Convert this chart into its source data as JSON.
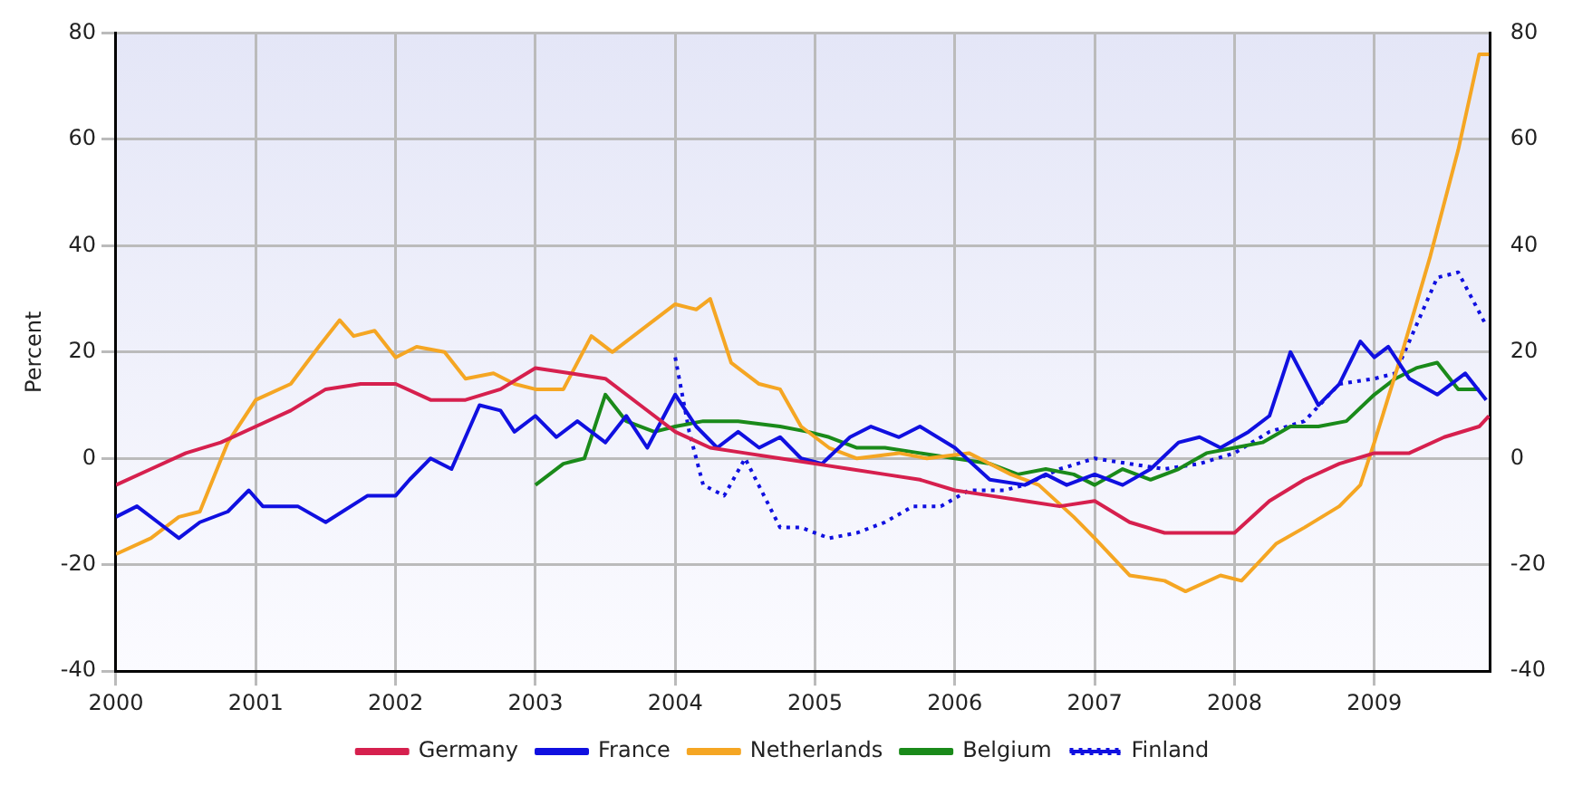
{
  "chart_data": {
    "type": "line",
    "ylabel": "Percent",
    "xlim": [
      2000,
      2009.83
    ],
    "xticks": [
      2000,
      2001,
      2002,
      2003,
      2004,
      2005,
      2006,
      2007,
      2008,
      2009
    ],
    "ylim": [
      -40,
      80
    ],
    "yticks": [
      -40,
      -20,
      0,
      20,
      40,
      60,
      80
    ],
    "y2lim": [
      -40,
      80
    ],
    "y2ticks": [
      -40,
      -20,
      0,
      20,
      40,
      60,
      80
    ],
    "grid": true,
    "legend": "bottom",
    "marker": "none",
    "series": [
      {
        "name": "Germany",
        "color": "#d6204e",
        "x": [
          2000,
          2000.25,
          2000.5,
          2000.75,
          2001,
          2001.25,
          2001.5,
          2001.75,
          2002,
          2002.25,
          2002.5,
          2002.75,
          2003,
          2003.25,
          2003.5,
          2003.75,
          2004,
          2004.25,
          2004.5,
          2004.75,
          2005,
          2005.25,
          2005.5,
          2005.75,
          2006,
          2006.25,
          2006.5,
          2006.75,
          2007,
          2007.25,
          2007.5,
          2007.75,
          2008,
          2008.25,
          2008.5,
          2008.75,
          2009,
          2009.25,
          2009.5,
          2009.75,
          2009.82
        ],
        "values": [
          -5,
          -2,
          1,
          3,
          6,
          9,
          13,
          14,
          14,
          11,
          11,
          13,
          17,
          16,
          15,
          10,
          5,
          2,
          1,
          0,
          -1,
          -2,
          -3,
          -4,
          -6,
          -7,
          -8,
          -9,
          -8,
          -12,
          -14,
          -14,
          -14,
          -8,
          -4,
          -1,
          1,
          1,
          4,
          6,
          8
        ]
      },
      {
        "name": "France",
        "color": "#1010e0",
        "x": [
          2000,
          2000.15,
          2000.3,
          2000.45,
          2000.6,
          2000.8,
          2000.95,
          2001.05,
          2001.3,
          2001.5,
          2001.8,
          2002,
          2002.1,
          2002.25,
          2002.4,
          2002.5,
          2002.6,
          2002.75,
          2002.85,
          2003,
          2003.15,
          2003.3,
          2003.5,
          2003.65,
          2003.8,
          2004,
          2004.15,
          2004.3,
          2004.45,
          2004.6,
          2004.75,
          2004.9,
          2005.05,
          2005.25,
          2005.4,
          2005.6,
          2005.75,
          2006,
          2006.25,
          2006.5,
          2006.65,
          2006.8,
          2007,
          2007.2,
          2007.4,
          2007.6,
          2007.75,
          2007.9,
          2008.1,
          2008.25,
          2008.4,
          2008.5,
          2008.6,
          2008.75,
          2008.9,
          2009,
          2009.1,
          2009.25,
          2009.45,
          2009.65,
          2009.8
        ],
        "values": [
          -11,
          -9,
          -12,
          -15,
          -12,
          -10,
          -6,
          -9,
          -9,
          -12,
          -7,
          -7,
          -4,
          0,
          -2,
          4,
          10,
          9,
          5,
          8,
          4,
          7,
          3,
          8,
          2,
          12,
          6,
          2,
          5,
          2,
          4,
          0,
          -1,
          4,
          6,
          4,
          6,
          2,
          -4,
          -5,
          -3,
          -5,
          -3,
          -5,
          -2,
          3,
          4,
          2,
          5,
          8,
          20,
          15,
          10,
          14,
          22,
          19,
          21,
          15,
          12,
          16,
          11
        ]
      },
      {
        "name": "Netherlands",
        "color": "#f5a623",
        "x": [
          2000,
          2000.25,
          2000.45,
          2000.6,
          2000.8,
          2001,
          2001.25,
          2001.45,
          2001.6,
          2001.7,
          2001.85,
          2002,
          2002.15,
          2002.35,
          2002.5,
          2002.7,
          2002.85,
          2003,
          2003.2,
          2003.4,
          2003.55,
          2003.8,
          2004,
          2004.15,
          2004.25,
          2004.4,
          2004.6,
          2004.75,
          2004.9,
          2005.1,
          2005.3,
          2005.6,
          2005.8,
          2006.1,
          2006.4,
          2006.6,
          2006.85,
          2007,
          2007.25,
          2007.5,
          2007.65,
          2007.9,
          2008.05,
          2008.3,
          2008.5,
          2008.75,
          2008.9,
          2009,
          2009.2,
          2009.4,
          2009.6,
          2009.75,
          2009.82
        ],
        "values": [
          -18,
          -15,
          -11,
          -10,
          3,
          11,
          14,
          21,
          26,
          23,
          24,
          19,
          21,
          20,
          15,
          16,
          14,
          13,
          13,
          23,
          20,
          25,
          29,
          28,
          30,
          18,
          14,
          13,
          6,
          2,
          0,
          1,
          0,
          1,
          -3,
          -5,
          -11,
          -15,
          -22,
          -23,
          -25,
          -22,
          -23,
          -16,
          -13,
          -9,
          -5,
          3,
          20,
          38,
          58,
          76,
          76
        ]
      },
      {
        "name": "Belgium",
        "color": "#1a8a1a",
        "x": [
          2003,
          2003.1,
          2003.2,
          2003.35,
          2003.5,
          2003.65,
          2003.85,
          2004,
          2004.2,
          2004.45,
          2004.75,
          2004.95,
          2005.1,
          2005.3,
          2005.5,
          2005.75,
          2006,
          2006.25,
          2006.45,
          2006.65,
          2006.85,
          2007,
          2007.2,
          2007.4,
          2007.6,
          2007.8,
          2008,
          2008.2,
          2008.4,
          2008.6,
          2008.8,
          2009,
          2009.15,
          2009.3,
          2009.45,
          2009.6,
          2009.75
        ],
        "values": [
          -5,
          -3,
          -1,
          0,
          12,
          7,
          5,
          6,
          7,
          7,
          6,
          5,
          4,
          2,
          2,
          1,
          0,
          -1,
          -3,
          -2,
          -3,
          -5,
          -2,
          -4,
          -2,
          1,
          2,
          3,
          6,
          6,
          7,
          12,
          15,
          17,
          18,
          13,
          13
        ]
      },
      {
        "name": "Finland",
        "color": "#1010e0",
        "line_style": "dotted",
        "x": [
          2004,
          2004.1,
          2004.2,
          2004.35,
          2004.5,
          2004.75,
          2004.9,
          2005.1,
          2005.3,
          2005.5,
          2005.7,
          2005.9,
          2006.1,
          2006.35,
          2006.5,
          2006.75,
          2007,
          2007.25,
          2007.5,
          2007.75,
          2008,
          2008.25,
          2008.5,
          2008.75,
          2009,
          2009.15,
          2009.3,
          2009.45,
          2009.6,
          2009.8
        ],
        "values": [
          19,
          5,
          -5,
          -7,
          0,
          -13,
          -13,
          -15,
          -14,
          -12,
          -9,
          -9,
          -6,
          -6,
          -5,
          -2,
          0,
          -1,
          -2,
          -1,
          1,
          5,
          7,
          14,
          15,
          16,
          25,
          34,
          35,
          25
        ]
      }
    ]
  }
}
